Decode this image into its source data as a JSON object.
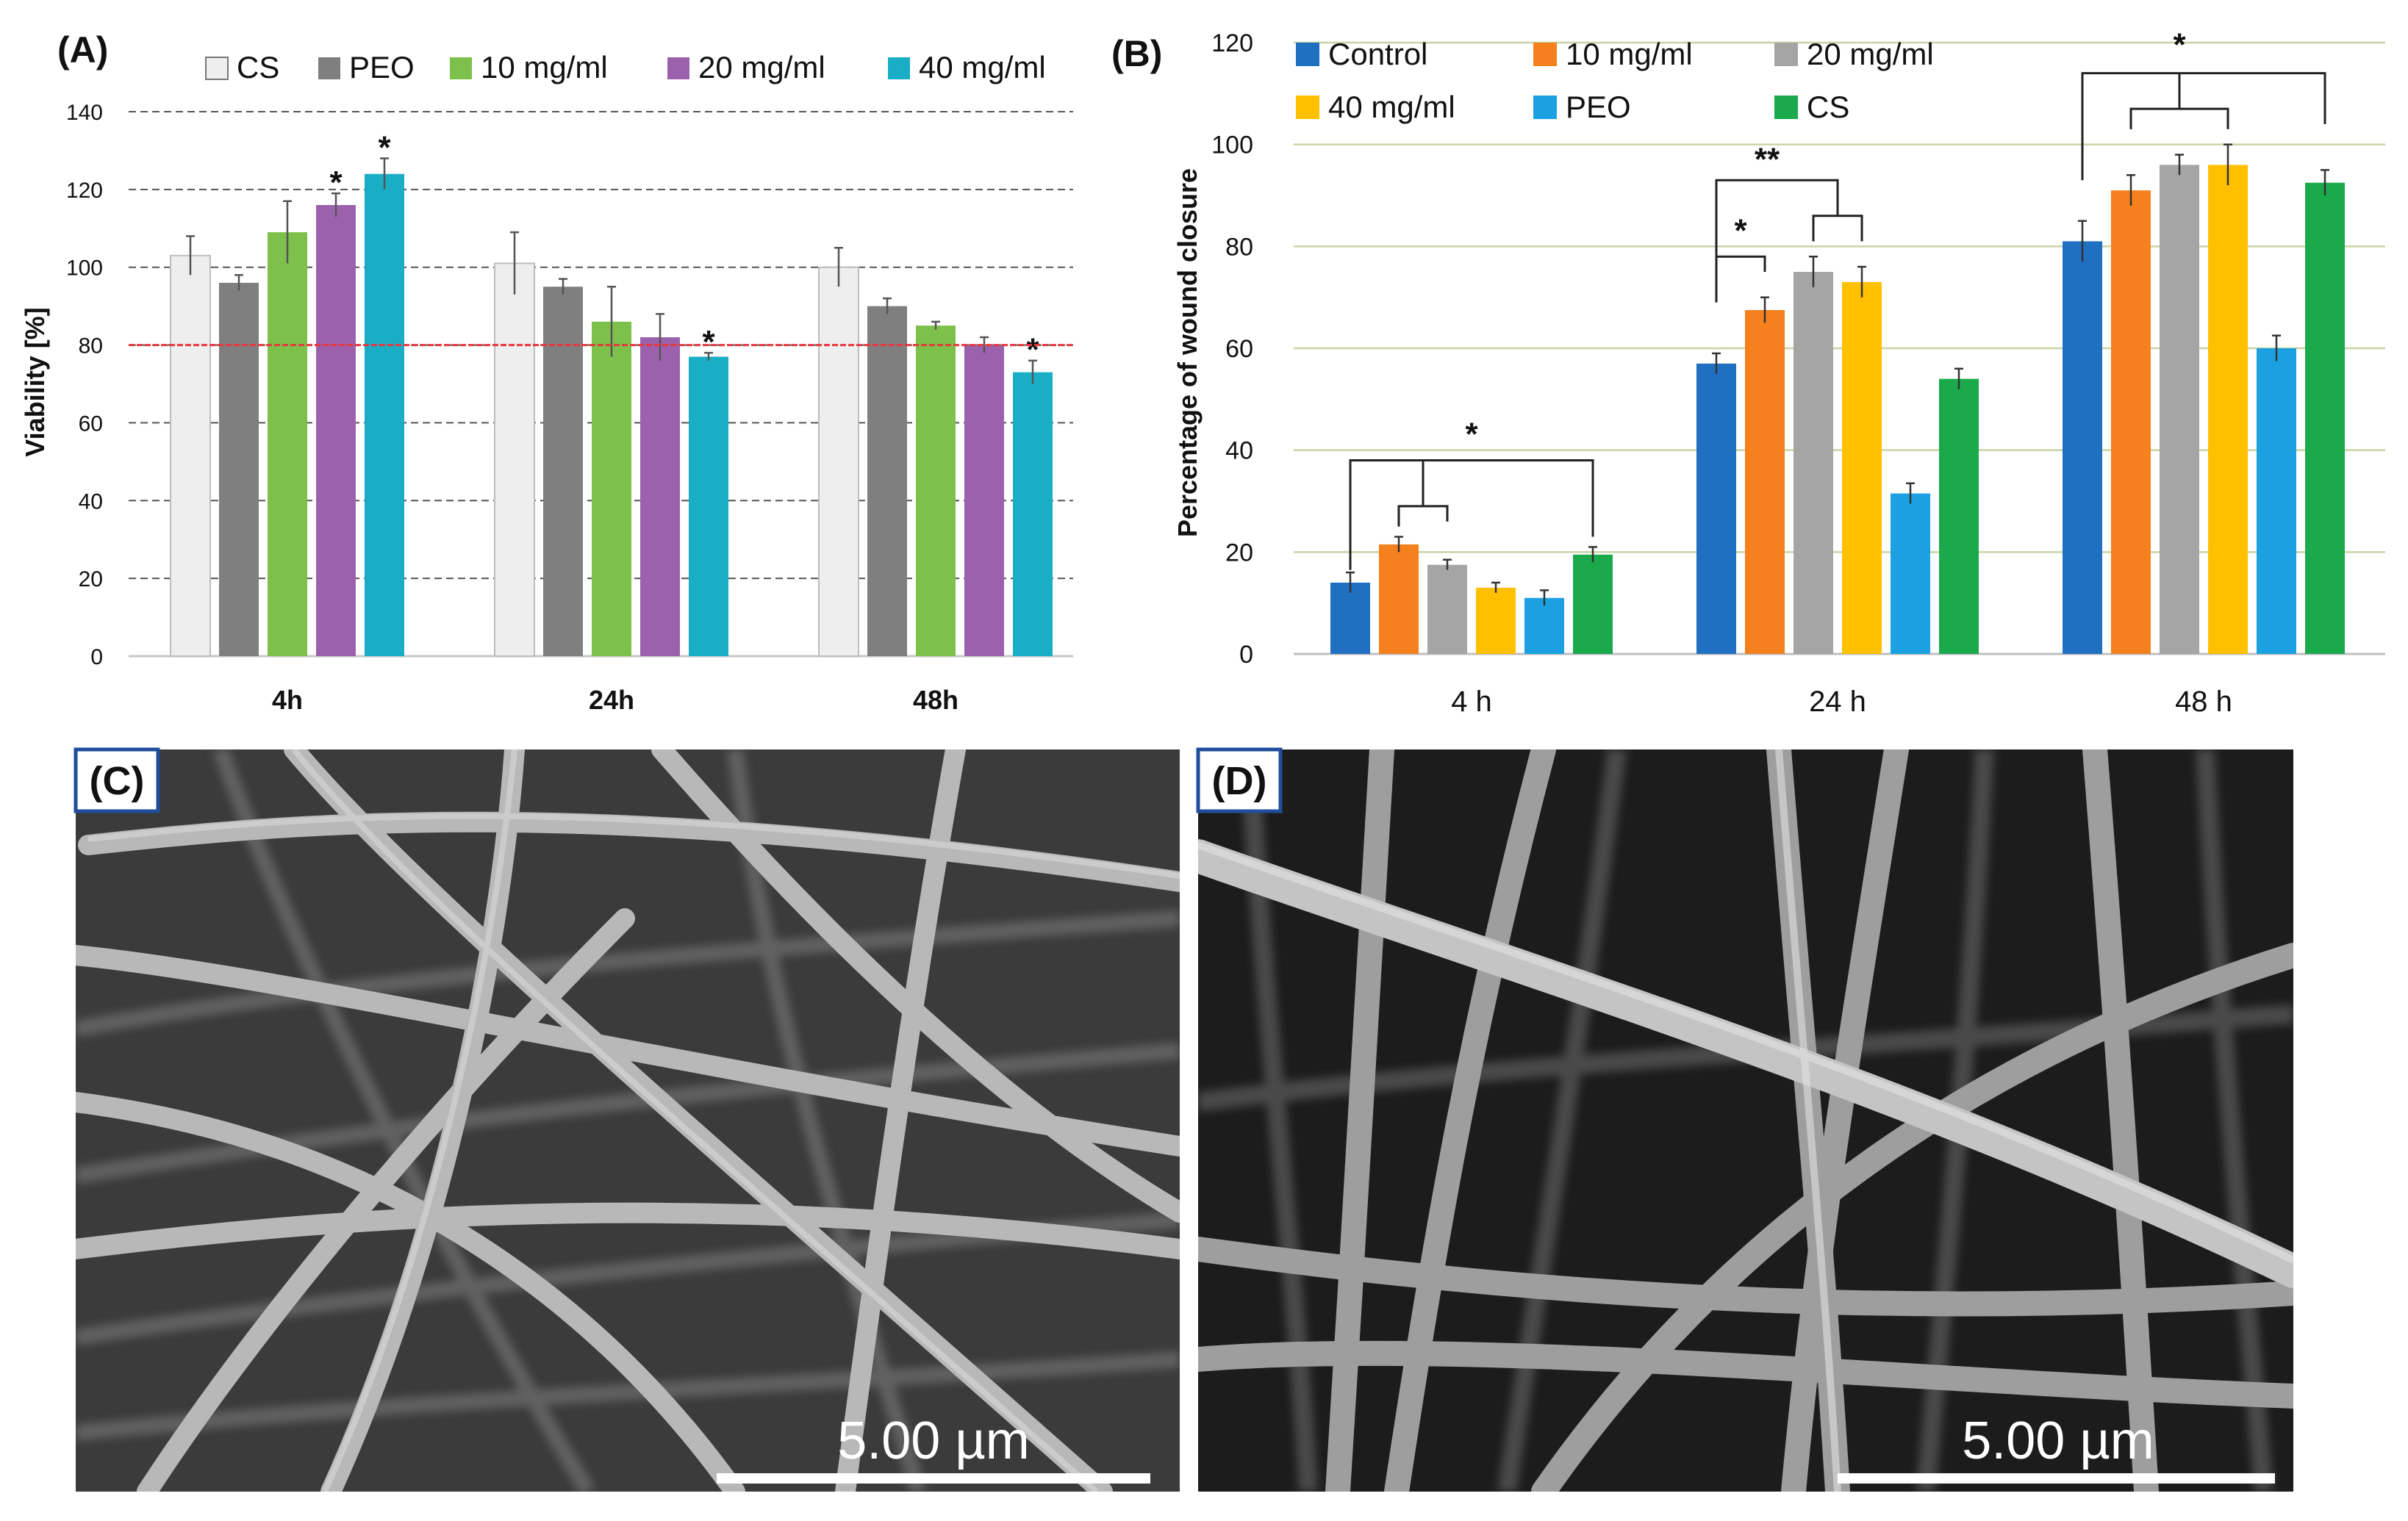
{
  "panel_labels": {
    "a": "(A)",
    "b": "(B)",
    "c": "(C)",
    "d": "(D)"
  },
  "chart_data": [
    {
      "type": "bar",
      "title": "",
      "xlabel": "",
      "ylabel": "Viability [%]",
      "ylim": [
        0,
        140
      ],
      "yticks": [
        "0",
        "20",
        "40",
        "60",
        "80",
        "100",
        "120",
        "140"
      ],
      "grid": true,
      "legend_position": "top",
      "reference_line": {
        "value": 80,
        "color": "#e8383d"
      },
      "categories": [
        "4h",
        "24h",
        "48h"
      ],
      "series": [
        {
          "name": "CS",
          "color": "#eeeeee",
          "values": [
            103,
            101,
            100
          ],
          "errors": [
            5,
            8,
            5
          ]
        },
        {
          "name": "PEO",
          "color": "#7f7f7f",
          "values": [
            96,
            95,
            90
          ],
          "errors": [
            2,
            2,
            2
          ]
        },
        {
          "name": "10 mg/ml",
          "color": "#7dc04b",
          "values": [
            109,
            86,
            85
          ],
          "errors": [
            8,
            9,
            1
          ]
        },
        {
          "name": "20 mg/ml",
          "color": "#9c61ad",
          "values": [
            116,
            82,
            80
          ],
          "errors": [
            3,
            6,
            2
          ]
        },
        {
          "name": "40 mg/ml",
          "color": "#1aaec6",
          "values": [
            124,
            77,
            73
          ],
          "errors": [
            4,
            1,
            3
          ]
        }
      ],
      "annotations": [
        {
          "text": "*",
          "category": "4h",
          "series": "20 mg/ml"
        },
        {
          "text": "*",
          "category": "4h",
          "series": "40 mg/ml"
        },
        {
          "text": "*",
          "category": "24h",
          "series": "40 mg/ml"
        },
        {
          "text": "*",
          "category": "48h",
          "series": "40 mg/ml"
        }
      ]
    },
    {
      "type": "bar",
      "title": "",
      "xlabel": "",
      "ylabel": "Percentage of wound closure",
      "ylim": [
        0,
        120
      ],
      "yticks": [
        "0",
        "20",
        "40",
        "60",
        "80",
        "100",
        "120"
      ],
      "grid": true,
      "legend_position": "top",
      "categories": [
        "4 h",
        "24 h",
        "48 h"
      ],
      "series": [
        {
          "name": "Control",
          "color": "#1f70c1",
          "values": [
            14,
            57,
            81
          ],
          "errors": [
            2,
            2,
            4
          ]
        },
        {
          "name": "10 mg/ml",
          "color": "#f5801e",
          "values": [
            21.5,
            67.5,
            91
          ],
          "errors": [
            1.5,
            2.5,
            3
          ]
        },
        {
          "name": "20 mg/ml",
          "color": "#a5a5a5",
          "values": [
            17.5,
            75,
            96
          ],
          "errors": [
            1,
            3,
            2
          ]
        },
        {
          "name": "40 mg/ml",
          "color": "#ffc000",
          "values": [
            13,
            73,
            96
          ],
          "errors": [
            1,
            3,
            4
          ]
        },
        {
          "name": "PEO",
          "color": "#1ba1e2",
          "values": [
            11,
            31.5,
            60
          ],
          "errors": [
            1.5,
            2,
            2.5
          ]
        },
        {
          "name": "CS",
          "color": "#1aa94b",
          "values": [
            19.5,
            54,
            92.5
          ],
          "errors": [
            1.5,
            2,
            2.5
          ]
        }
      ],
      "annotations": [
        {
          "text": "*",
          "category": "4 h"
        },
        {
          "text": "*",
          "category": "24 h"
        },
        {
          "text": "**",
          "category": "24 h"
        },
        {
          "text": "*",
          "category": "48 h"
        }
      ]
    }
  ],
  "micrographs": [
    {
      "label": "(C)",
      "scalebar": "5.00 µm"
    },
    {
      "label": "(D)",
      "scalebar": "5.00 µm"
    }
  ]
}
